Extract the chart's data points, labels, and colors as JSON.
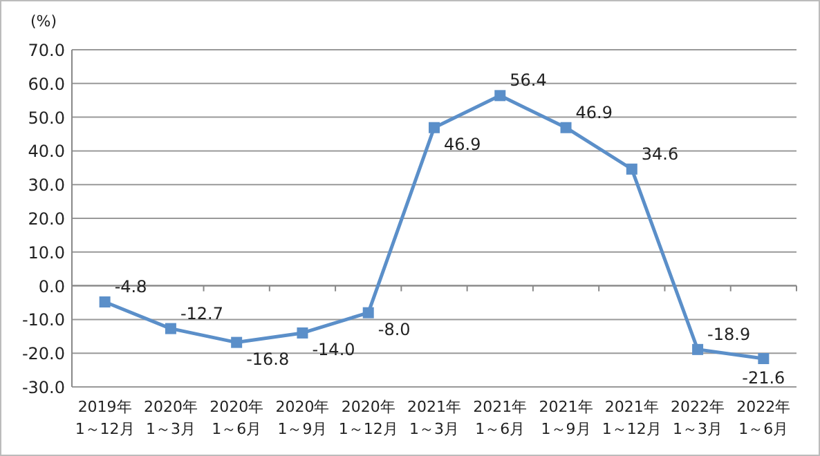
{
  "chart_data": {
    "type": "line",
    "ylabel": "(%)",
    "categories": [
      "2019年\n1～12月",
      "2020年\n1～3月",
      "2020年\n1～6月",
      "2020年\n1～9月",
      "2020年\n1～12月",
      "2021年\n1～3月",
      "2021年\n1～6月",
      "2021年\n1～9月",
      "2021年\n1～12月",
      "2022年\n1～3月",
      "2022年\n1～6月"
    ],
    "series": [
      {
        "color": "#5b8fc9",
        "values": [
          -4.8,
          -12.7,
          -16.8,
          -14.0,
          -8.0,
          46.9,
          56.4,
          46.9,
          34.6,
          -18.9,
          -21.6
        ],
        "value_labels": [
          "-4.8",
          "-12.7",
          "-16.8",
          "-14.0",
          "-8.0",
          "46.9",
          "56.4",
          "46.9",
          "34.6",
          "-18.9",
          "-21.6"
        ]
      }
    ],
    "ylim": [
      -30,
      70
    ],
    "yticks": [
      {
        "value": -30,
        "label": "-30.0"
      },
      {
        "value": -20,
        "label": "-20.0"
      },
      {
        "value": -10,
        "label": "-10.0"
      },
      {
        "value": 0,
        "label": "0.0"
      },
      {
        "value": 10,
        "label": "10.0"
      },
      {
        "value": 20,
        "label": "20.0"
      },
      {
        "value": 30,
        "label": "30.0"
      },
      {
        "value": 40,
        "label": "40.0"
      },
      {
        "value": 50,
        "label": "50.0"
      },
      {
        "value": 60,
        "label": "60.0"
      },
      {
        "value": 70,
        "label": "70.0"
      }
    ],
    "grid": "y",
    "marker": "square",
    "line_style": "solid"
  }
}
